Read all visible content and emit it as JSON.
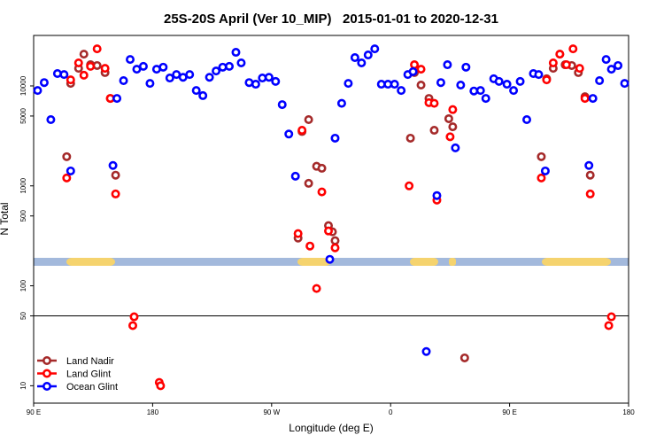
{
  "chart_data": {
    "type": "scatter",
    "title": "25S-20S April (Ver 10_MIP)   2015-01-01 to 2020-12-31",
    "xlabel": "Longitude (deg E)",
    "ylabel": "N Total",
    "xlim": [
      90,
      540
    ],
    "xticks": [
      {
        "value": 90,
        "label": "90 E"
      },
      {
        "value": 180,
        "label": "180"
      },
      {
        "value": 270,
        "label": "90 W"
      },
      {
        "value": 360,
        "label": "0"
      },
      {
        "value": 450,
        "label": "90 E"
      },
      {
        "value": 540,
        "label": "180"
      }
    ],
    "ylim": [
      6.7,
      32000
    ],
    "log_y": true,
    "yticks": [
      10,
      50,
      100,
      500,
      1000,
      5000,
      10000
    ],
    "reference_line": 50,
    "legend": "lower left",
    "series": [
      {
        "name": "Land Nadir",
        "color": "#a52a2a",
        "x": [
          115,
          118,
          124,
          128,
          133,
          138,
          144,
          148,
          152,
          290,
          298,
          293,
          298,
          304,
          308,
          313,
          316,
          318,
          375,
          378,
          383,
          389,
          393,
          404,
          407,
          416,
          474,
          478,
          483,
          488,
          492,
          497,
          502,
          507,
          511
        ],
        "values": [
          1960,
          10600,
          15000,
          20800,
          16300,
          16000,
          13600,
          7500,
          1280,
          300,
          4600,
          3500,
          1060,
          1570,
          1500,
          400,
          347,
          283,
          3000,
          13600,
          10200,
          7500,
          3600,
          4700,
          3900,
          19,
          1960,
          11800,
          15000,
          20800,
          16300,
          16000,
          13600,
          7800,
          1280
        ]
      },
      {
        "name": "Land Glint",
        "color": "#ff0000",
        "x": [
          115,
          118,
          124,
          128,
          133,
          138,
          144,
          148,
          152,
          166,
          165,
          185,
          186,
          290,
          293,
          299,
          304,
          308,
          313,
          318,
          374,
          378,
          383,
          389,
          393,
          395,
          405,
          407,
          474,
          478,
          483,
          488,
          493,
          498,
          503,
          507,
          511,
          527,
          525
        ],
        "values": [
          1200,
          11500,
          17000,
          12800,
          15700,
          23500,
          15000,
          7500,
          830,
          49,
          40,
          10.8,
          10,
          333,
          3600,
          250,
          94,
          870,
          354,
          240,
          1000,
          16300,
          14700,
          6800,
          6700,
          720,
          3100,
          5800,
          1200,
          11500,
          17000,
          20800,
          16300,
          23500,
          15000,
          7500,
          830,
          49,
          40
        ]
      },
      {
        "name": "Ocean Glint",
        "color": "#0000ff",
        "x": [
          93,
          98,
          103,
          108,
          113,
          150,
          118,
          153,
          158,
          163,
          168,
          173,
          178,
          183,
          188,
          193,
          198,
          203,
          208,
          213,
          218,
          223,
          228,
          233,
          238,
          243,
          247,
          253,
          258,
          263,
          268,
          273,
          278,
          283,
          288,
          314,
          318,
          323,
          328,
          333,
          338,
          343,
          348,
          353,
          358,
          363,
          368,
          373,
          377,
          387,
          395,
          398,
          403,
          409,
          413,
          417,
          423,
          428,
          432,
          438,
          442,
          448,
          453,
          458,
          463,
          468,
          472,
          477,
          510,
          513,
          518,
          523,
          527,
          532,
          537
        ],
        "values": [
          9000,
          10800,
          4600,
          13300,
          13000,
          1600,
          1410,
          7500,
          11300,
          18400,
          14700,
          15700,
          10600,
          14700,
          15400,
          12000,
          13000,
          12200,
          13000,
          9000,
          8000,
          12200,
          14100,
          15400,
          15700,
          21700,
          17000,
          10800,
          10400,
          12000,
          12200,
          11100,
          6500,
          3300,
          1250,
          184,
          3000,
          6700,
          10600,
          19200,
          17000,
          20400,
          23500,
          10400,
          10400,
          10400,
          9000,
          13000,
          13900,
          22,
          800,
          10800,
          16300,
          2400,
          10200,
          15400,
          8900,
          9000,
          7500,
          11800,
          11100,
          10400,
          9000,
          11100,
          4600,
          13300,
          13000,
          1410,
          1600,
          7500,
          11300,
          18400,
          14700,
          16000,
          10600
        ]
      }
    ]
  }
}
